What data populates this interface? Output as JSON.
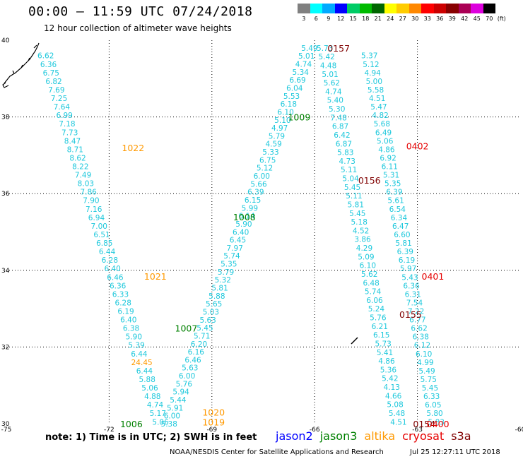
{
  "title": "00:00 – 11:59 UTC 07/24/2018",
  "subtitle": "12 hour collection of altimeter wave heights",
  "scale": {
    "unit": "(ft)",
    "entries": [
      {
        "label": "3",
        "color": "#808080"
      },
      {
        "label": "6",
        "color": "#00ffff"
      },
      {
        "label": "9",
        "color": "#00aaff"
      },
      {
        "label": "12",
        "color": "#0000ff"
      },
      {
        "label": "15",
        "color": "#00cc66"
      },
      {
        "label": "18",
        "color": "#00bb00"
      },
      {
        "label": "21",
        "color": "#006600"
      },
      {
        "label": "24",
        "color": "#ffff00"
      },
      {
        "label": "27",
        "color": "#ffcc00"
      },
      {
        "label": "30",
        "color": "#ff8800"
      },
      {
        "label": "33",
        "color": "#ff0000"
      },
      {
        "label": "36",
        "color": "#cc0000"
      },
      {
        "label": "39",
        "color": "#880000"
      },
      {
        "label": "42",
        "color": "#aa0055"
      },
      {
        "label": "45",
        "color": "#dd00dd"
      },
      {
        "label": "70",
        "color": "#000000"
      }
    ]
  },
  "map": {
    "lon_range": [
      -75,
      -60
    ],
    "lat_range": [
      30,
      40
    ],
    "lon_ticks": [
      {
        "lon": -75,
        "label": "-75"
      },
      {
        "lon": -72,
        "label": "-72"
      },
      {
        "lon": -69,
        "label": "-69"
      },
      {
        "lon": -66,
        "label": "-66"
      },
      {
        "lon": -63,
        "label": "-63"
      },
      {
        "lon": -60,
        "label": "-60"
      }
    ],
    "lat_ticks": [
      {
        "lat": 30,
        "label": "30"
      },
      {
        "lat": 32,
        "label": "32"
      },
      {
        "lat": 34,
        "label": "34"
      },
      {
        "lat": 36,
        "label": "36"
      },
      {
        "lat": 38,
        "label": "38"
      },
      {
        "lat": 40,
        "label": "40"
      }
    ],
    "colors": {
      "cyan": "#1ec8dc",
      "jason3": "#008000",
      "altika": "#ff9900",
      "cryosat": "#e60000",
      "s3a": "#800000"
    },
    "tracks": [
      {
        "lon0": -73.85,
        "lon1": -70.5,
        "lat0": 39.6,
        "lat1": 30.05,
        "values": [
          "6.62",
          "6.36",
          "6.75",
          "6.82",
          "7.69",
          "7.25",
          "7.64",
          "6.99",
          "7.18",
          "7.73",
          "8.47",
          "8.71",
          "8.62",
          "8.22",
          "7.49",
          "8.03",
          "7.86",
          "7.90",
          "7.16",
          "6.94",
          "7.00",
          "6.51",
          "6.85",
          "6.44",
          "6.28",
          "6.40",
          "6.46",
          "6.36",
          "6.33",
          "6.28",
          "6.19",
          "6.40",
          "6.38",
          "5.90",
          "5.39",
          "6.44",
          "24.45",
          "6.44",
          "5.88",
          "5.06",
          "4.88",
          "4.74",
          "5.17",
          "5.06"
        ]
      },
      {
        "lon0": -70.25,
        "lon1": -66.15,
        "lat0": 30.0,
        "lat1": 39.8,
        "values": [
          "5.38",
          "6.00",
          "5.91",
          "5.44",
          "5.94",
          "5.76",
          "6.00",
          "5.63",
          "6.46",
          "6.16",
          "6.20",
          "5.71",
          "5.45",
          "5.63",
          "5.03",
          "5.65",
          "5.88",
          "5.81",
          "5.32",
          "5.79",
          "5.35",
          "5.74",
          "7.97",
          "6.45",
          "6.40",
          "5.90",
          "6.14",
          "5.99",
          "6.15",
          "6.39",
          "5.66",
          "6.00",
          "5.12",
          "6.75",
          "5.33",
          "4.59",
          "5.79",
          "4.97",
          "5.10",
          "6.10",
          "6.18",
          "5.53",
          "6.04",
          "6.69",
          "5.34",
          "4.74",
          "5.01",
          "5.49"
        ]
      },
      {
        "lon0": -65.7,
        "lon1": -63.55,
        "lat0": 39.8,
        "lat1": 30.05,
        "values": [
          "5.73",
          "5.42",
          "4.48",
          "5.01",
          "5.62",
          "4.74",
          "5.40",
          "5.30",
          "7.48",
          "6.87",
          "6.42",
          "6.87",
          "5.83",
          "4.73",
          "5.11",
          "5.04",
          "5.45",
          "5.11",
          "5.81",
          "5.45",
          "5.18",
          "4.52",
          "3.86",
          "4.29",
          "5.09",
          "6.10",
          "5.62",
          "6.48",
          "5.74",
          "6.06",
          "5.24",
          "5.76",
          "6.21",
          "6.15",
          "5.73",
          "5.41",
          "4.86",
          "5.36",
          "5.42",
          "4.13",
          "4.66",
          "5.08",
          "5.48",
          "4.51"
        ]
      },
      {
        "lon0": -64.4,
        "lon1": -62.45,
        "lat0": 39.6,
        "lat1": 30.05,
        "values": [
          "5.37",
          "5.12",
          "4.94",
          "5.00",
          "5.58",
          "4.51",
          "5.47",
          "4.82",
          "5.68",
          "6.49",
          "5.06",
          "4.86",
          "6.92",
          "6.11",
          "5.31",
          "5.35",
          "6.39",
          "5.61",
          "6.54",
          "6.34",
          "6.47",
          "6.60",
          "5.81",
          "6.39",
          "6.19",
          "5.97",
          "5.43",
          "6.36",
          "6.31",
          "7.54",
          "7.22",
          "6.77",
          "6.62",
          "6.38",
          "6.12",
          "6.10",
          "4.99",
          "5.49",
          "5.75",
          "5.45",
          "6.33",
          "6.05",
          "5.80",
          "5.83"
        ]
      }
    ],
    "labels": [
      {
        "text": "0157",
        "lon": -65.3,
        "lat": 39.8,
        "color": "s3a"
      },
      {
        "text": "1009",
        "lon": -66.45,
        "lat": 38.0,
        "color": "jason3"
      },
      {
        "text": "1022",
        "lon": -71.3,
        "lat": 37.2,
        "color": "altika"
      },
      {
        "text": "0402",
        "lon": -63.0,
        "lat": 37.25,
        "color": "cryosat"
      },
      {
        "text": "0156",
        "lon": -64.4,
        "lat": 36.35,
        "color": "s3a"
      },
      {
        "text": "1008",
        "lon": -68.05,
        "lat": 35.4,
        "color": "jason3"
      },
      {
        "text": "1021",
        "lon": -70.65,
        "lat": 33.85,
        "color": "altika"
      },
      {
        "text": "0401",
        "lon": -62.55,
        "lat": 33.85,
        "color": "cryosat"
      },
      {
        "text": "0155",
        "lon": -63.2,
        "lat": 32.85,
        "color": "s3a"
      },
      {
        "text": "1007",
        "lon": -69.75,
        "lat": 32.5,
        "color": "jason3"
      },
      {
        "text": "1020",
        "lon": -68.95,
        "lat": 30.3,
        "color": "altika"
      },
      {
        "text": "1019",
        "lon": -68.95,
        "lat": 30.05,
        "color": "altika"
      },
      {
        "text": "1006",
        "lon": -71.35,
        "lat": 30.0,
        "color": "jason3"
      },
      {
        "text": "0154",
        "lon": -62.8,
        "lat": 30.0,
        "color": "s3a"
      },
      {
        "text": "0400",
        "lon": -62.4,
        "lat": 30.0,
        "color": "cryosat"
      }
    ]
  },
  "note": "note:  1) Time is in UTC;  2) SWH is in feet",
  "legend": [
    {
      "text": "jason2",
      "color": "#0000ff"
    },
    {
      "text": "jason3",
      "color": "#008000"
    },
    {
      "text": "altika",
      "color": "#ff9900"
    },
    {
      "text": "cryosat",
      "color": "#e60000"
    },
    {
      "text": "s3a",
      "color": "#800000"
    }
  ],
  "credit": "NOAA/NESDIS Center for Satellite Applications and Research",
  "stamp": "Jul 25 12:27:11 UTC 2018"
}
